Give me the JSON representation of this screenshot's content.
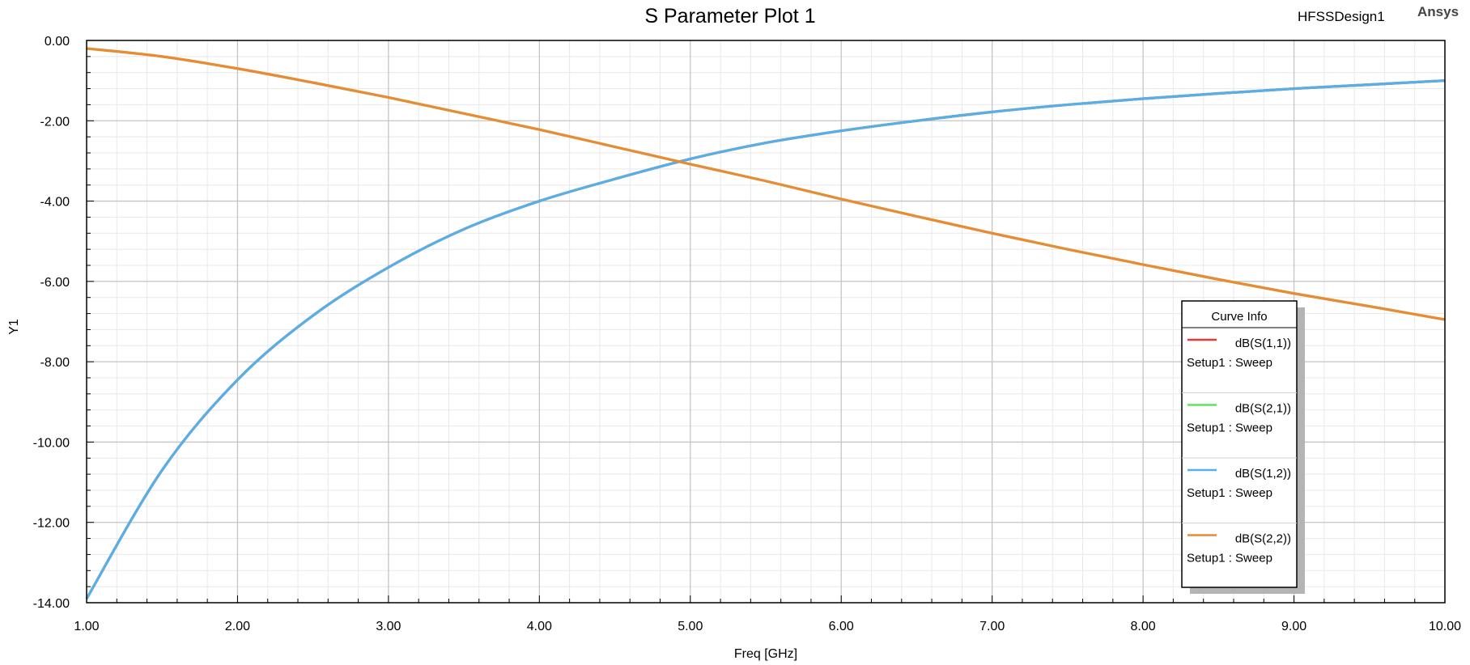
{
  "header": {
    "title": "S Parameter Plot 1",
    "design_name": "HFSSDesign1",
    "brand": "Ansys"
  },
  "chart_data": {
    "type": "line",
    "title": "S Parameter Plot 1",
    "xlabel": "Freq [GHz]",
    "ylabel": "Y1",
    "xlim": [
      1.0,
      10.0
    ],
    "ylim": [
      -14.0,
      0.0
    ],
    "grid": true,
    "legend_position": "right",
    "x_ticks": [
      "1.00",
      "2.00",
      "3.00",
      "4.00",
      "5.00",
      "6.00",
      "7.00",
      "8.00",
      "9.00",
      "10.00"
    ],
    "y_ticks": [
      "0.00",
      "-2.00",
      "-4.00",
      "-6.00",
      "-8.00",
      "-10.00",
      "-12.00",
      "-14.00"
    ],
    "x": [
      1.0,
      1.5,
      2.0,
      2.5,
      3.0,
      3.5,
      4.0,
      4.5,
      5.0,
      5.5,
      6.0,
      6.5,
      7.0,
      7.5,
      8.0,
      8.5,
      9.0,
      9.5,
      10.0
    ],
    "series": [
      {
        "name": "dB(S(1,1))",
        "setup": "Setup1 : Sweep",
        "color": "#e03c31",
        "values": [
          -13.9,
          -10.7,
          -8.45,
          -6.85,
          -5.65,
          -4.7,
          -4.0,
          -3.45,
          -2.95,
          -2.55,
          -2.25,
          -2.0,
          -1.78,
          -1.6,
          -1.45,
          -1.32,
          -1.2,
          -1.1,
          -1.0
        ]
      },
      {
        "name": "dB(S(2,1))",
        "setup": "Setup1 : Sweep",
        "color": "#5ce65c",
        "values": [
          -0.2,
          -0.4,
          -0.7,
          -1.05,
          -1.42,
          -1.82,
          -2.22,
          -2.65,
          -3.08,
          -3.5,
          -3.95,
          -4.38,
          -4.8,
          -5.2,
          -5.58,
          -5.95,
          -6.3,
          -6.62,
          -6.95
        ]
      },
      {
        "name": "dB(S(1,2))",
        "setup": "Setup1 : Sweep",
        "color": "#55b0e8",
        "values": [
          -13.9,
          -10.7,
          -8.45,
          -6.85,
          -5.65,
          -4.7,
          -4.0,
          -3.45,
          -2.95,
          -2.55,
          -2.25,
          -2.0,
          -1.78,
          -1.6,
          -1.45,
          -1.32,
          -1.2,
          -1.1,
          -1.0
        ]
      },
      {
        "name": "dB(S(2,2))",
        "setup": "Setup1 : Sweep",
        "color": "#ea8a35",
        "values": [
          -0.2,
          -0.4,
          -0.7,
          -1.05,
          -1.42,
          -1.82,
          -2.22,
          -2.65,
          -3.08,
          -3.5,
          -3.95,
          -4.38,
          -4.8,
          -5.2,
          -5.58,
          -5.95,
          -6.3,
          -6.62,
          -6.95
        ]
      }
    ]
  },
  "legend": {
    "title": "Curve Info"
  }
}
